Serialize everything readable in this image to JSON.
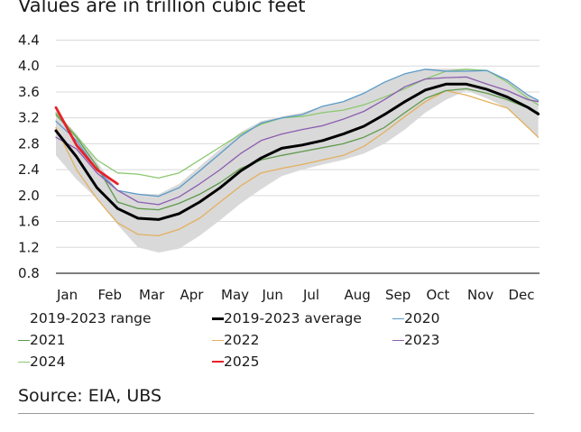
{
  "chart_data": {
    "type": "line",
    "title": "Values are in trillion cubic feet",
    "xlabel": "",
    "ylabel": "",
    "ylim": [
      0.8,
      4.4
    ],
    "yticks": [
      "4.4",
      "4.0",
      "3.6",
      "3.2",
      "2.8",
      "2.4",
      "2.0",
      "1.6",
      "1.2",
      "0.8"
    ],
    "ytick_values": [
      4.4,
      4.0,
      3.6,
      3.2,
      2.8,
      2.4,
      2.0,
      1.6,
      1.2,
      0.8
    ],
    "grid": true,
    "x_ticks": [
      "Jan",
      "Feb",
      "Mar",
      "Apr",
      "May",
      "Jun",
      "Jul",
      "Aug",
      "Sep",
      "Oct",
      "Nov",
      "Dec"
    ],
    "x_month_index": [
      0,
      0.5,
      1,
      1.5,
      2,
      2.5,
      3,
      3.5,
      4,
      4.5,
      5,
      5.5,
      6,
      6.5,
      7,
      7.5,
      8,
      8.5,
      9,
      9.5,
      10,
      10.5,
      11,
      11.5,
      11.75
    ],
    "range": {
      "name": "2019-2023 range",
      "color": "#d9d9d9",
      "low": [
        2.62,
        2.25,
        1.95,
        1.55,
        1.2,
        1.12,
        1.18,
        1.38,
        1.62,
        1.88,
        2.1,
        2.3,
        2.4,
        2.48,
        2.55,
        2.65,
        2.8,
        3.02,
        3.28,
        3.48,
        3.62,
        3.5,
        3.35,
        3.05,
        2.88
      ],
      "high": [
        3.3,
        2.95,
        2.52,
        2.08,
        2.03,
        2.02,
        2.18,
        2.45,
        2.72,
        2.98,
        3.15,
        3.22,
        3.28,
        3.38,
        3.45,
        3.58,
        3.75,
        3.88,
        3.96,
        3.96,
        3.96,
        3.93,
        3.78,
        3.55,
        3.48
      ]
    },
    "series": [
      {
        "name": "2019-2023 average",
        "color": "#000000",
        "width": 3,
        "values": [
          3.0,
          2.6,
          2.12,
          1.8,
          1.65,
          1.63,
          1.72,
          1.9,
          2.12,
          2.38,
          2.58,
          2.73,
          2.78,
          2.85,
          2.95,
          3.07,
          3.25,
          3.45,
          3.63,
          3.72,
          3.72,
          3.64,
          3.52,
          3.36,
          3.26
        ]
      },
      {
        "name": "2020",
        "color": "#5a9ac8",
        "width": 1.3,
        "values": [
          3.15,
          2.85,
          2.4,
          2.08,
          2.02,
          1.99,
          2.12,
          2.38,
          2.65,
          2.92,
          3.12,
          3.2,
          3.25,
          3.38,
          3.45,
          3.58,
          3.75,
          3.88,
          3.95,
          3.92,
          3.92,
          3.93,
          3.78,
          3.55,
          3.47
        ]
      },
      {
        "name": "2021",
        "color": "#5e9a4a",
        "width": 1.3,
        "values": [
          3.25,
          2.9,
          2.45,
          1.9,
          1.8,
          1.78,
          1.88,
          2.02,
          2.2,
          2.42,
          2.55,
          2.62,
          2.68,
          2.74,
          2.8,
          2.9,
          3.05,
          3.28,
          3.5,
          3.62,
          3.65,
          3.58,
          3.48,
          3.35,
          3.28
        ]
      },
      {
        "name": "2022",
        "color": "#e3b060",
        "width": 1.3,
        "values": [
          3.05,
          2.4,
          1.95,
          1.58,
          1.4,
          1.38,
          1.48,
          1.65,
          1.9,
          2.15,
          2.35,
          2.42,
          2.48,
          2.55,
          2.62,
          2.76,
          2.98,
          3.22,
          3.45,
          3.62,
          3.55,
          3.45,
          3.35,
          3.05,
          2.9
        ]
      },
      {
        "name": "2023",
        "color": "#8b5db0",
        "width": 1.3,
        "values": [
          2.9,
          2.72,
          2.35,
          2.08,
          1.9,
          1.86,
          1.98,
          2.18,
          2.4,
          2.65,
          2.85,
          2.95,
          3.02,
          3.08,
          3.18,
          3.3,
          3.48,
          3.68,
          3.8,
          3.82,
          3.83,
          3.72,
          3.62,
          3.48,
          3.45
        ]
      },
      {
        "name": "2024",
        "color": "#8cc870",
        "width": 1.3,
        "values": [
          3.28,
          2.92,
          2.55,
          2.35,
          2.33,
          2.27,
          2.35,
          2.55,
          2.75,
          2.95,
          3.1,
          3.2,
          3.22,
          3.28,
          3.32,
          3.4,
          3.52,
          3.65,
          3.8,
          3.92,
          3.95,
          3.93,
          3.75,
          3.5,
          3.4
        ]
      },
      {
        "name": "2025",
        "color": "#e8202a",
        "width": 2.8,
        "values": [
          3.36,
          2.78,
          2.4,
          2.18,
          null,
          null,
          null,
          null,
          null,
          null,
          null,
          null,
          null,
          null,
          null,
          null,
          null,
          null,
          null,
          null,
          null,
          null,
          null,
          null,
          null
        ]
      }
    ],
    "legend": [
      {
        "label": "2019-2023 range",
        "color": "#d9d9d9",
        "kind": "area"
      },
      {
        "label": "2019-2023 average",
        "color": "#000000",
        "kind": "line"
      },
      {
        "label": "2020",
        "color": "#5a9ac8",
        "kind": "line"
      },
      {
        "label": "2021",
        "color": "#5e9a4a",
        "kind": "line"
      },
      {
        "label": "2022",
        "color": "#e3b060",
        "kind": "line"
      },
      {
        "label": "2023",
        "color": "#8b5db0",
        "kind": "line"
      },
      {
        "label": "2024",
        "color": "#8cc870",
        "kind": "line"
      },
      {
        "label": "2025",
        "color": "#e8202a",
        "kind": "line"
      }
    ],
    "legend_placement": "bottom",
    "source": "Source: EIA, UBS"
  }
}
